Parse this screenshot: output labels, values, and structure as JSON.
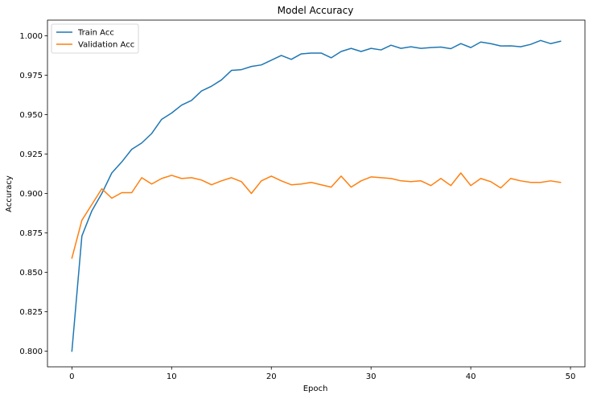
{
  "chart_data": {
    "type": "line",
    "title": "Model Accuracy",
    "xlabel": "Epoch",
    "ylabel": "Accuracy",
    "xlim": [
      -2.45,
      51.45
    ],
    "ylim": [
      0.7901,
      1.0099
    ],
    "xticks": [
      0,
      10,
      20,
      30,
      40,
      50
    ],
    "yticks": [
      0.8,
      0.825,
      0.85,
      0.875,
      0.9,
      0.925,
      0.95,
      0.975,
      1.0
    ],
    "ytick_labels": [
      "0.800",
      "0.825",
      "0.850",
      "0.875",
      "0.900",
      "0.925",
      "0.950",
      "0.975",
      "1.000"
    ],
    "legend_position": "top-left",
    "grid": false,
    "x": [
      0,
      1,
      2,
      3,
      4,
      5,
      6,
      7,
      8,
      9,
      10,
      11,
      12,
      13,
      14,
      15,
      16,
      17,
      18,
      19,
      20,
      21,
      22,
      23,
      24,
      25,
      26,
      27,
      28,
      29,
      30,
      31,
      32,
      33,
      34,
      35,
      36,
      37,
      38,
      39,
      40,
      41,
      42,
      43,
      44,
      45,
      46,
      47,
      48,
      49
    ],
    "series": [
      {
        "name": "Train Acc",
        "color": "#1f77b4",
        "values": [
          0.8,
          0.873,
          0.889,
          0.9,
          0.913,
          0.92,
          0.928,
          0.932,
          0.938,
          0.947,
          0.951,
          0.956,
          0.959,
          0.965,
          0.968,
          0.972,
          0.978,
          0.9785,
          0.9805,
          0.9815,
          0.9845,
          0.9875,
          0.985,
          0.9885,
          0.989,
          0.989,
          0.986,
          0.99,
          0.992,
          0.99,
          0.992,
          0.991,
          0.994,
          0.992,
          0.993,
          0.992,
          0.9925,
          0.9928,
          0.9918,
          0.995,
          0.9925,
          0.996,
          0.995,
          0.9935,
          0.9936,
          0.993,
          0.9945,
          0.997,
          0.995,
          0.9965
        ]
      },
      {
        "name": "Validation Acc",
        "color": "#ff7f0e",
        "values": [
          0.859,
          0.883,
          0.893,
          0.903,
          0.897,
          0.9005,
          0.9005,
          0.91,
          0.906,
          0.9095,
          0.9115,
          0.9095,
          0.91,
          0.9085,
          0.9055,
          0.908,
          0.91,
          0.9075,
          0.9,
          0.908,
          0.911,
          0.908,
          0.9055,
          0.906,
          0.907,
          0.9055,
          0.904,
          0.911,
          0.904,
          0.908,
          0.9105,
          0.91,
          0.9095,
          0.908,
          0.9075,
          0.908,
          0.905,
          0.9095,
          0.905,
          0.913,
          0.905,
          0.9095,
          0.9075,
          0.9035,
          0.9095,
          0.908,
          0.907,
          0.907,
          0.908,
          0.907
        ]
      }
    ]
  }
}
